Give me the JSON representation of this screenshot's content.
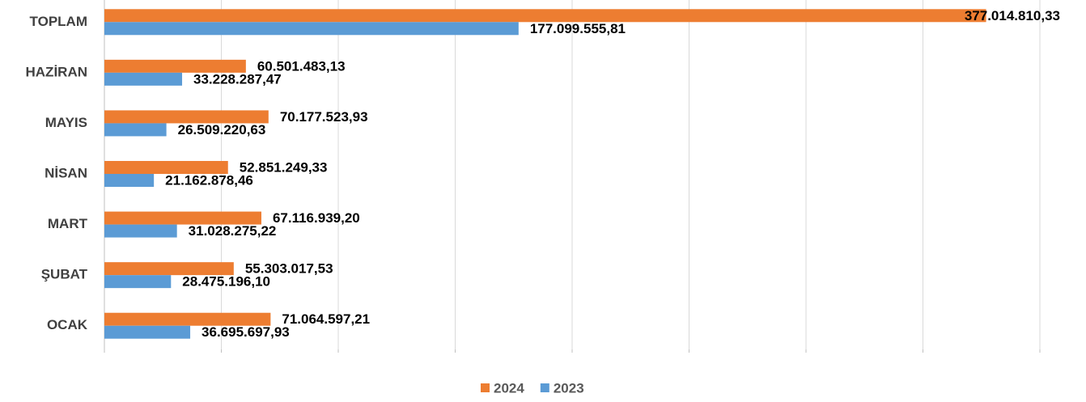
{
  "chart_data": {
    "type": "barh",
    "categories": [
      "TOPLAM",
      "HAZİRAN",
      "MAYIS",
      "NİSAN",
      "MART",
      "ŞUBAT",
      "OCAK"
    ],
    "series": [
      {
        "name": "2024",
        "color": "#ed7d31",
        "values": [
          377014810.33,
          60501483.13,
          70177523.93,
          52851249.33,
          67116939.2,
          55303017.53,
          71064597.21
        ],
        "value_labels": [
          "377.014.810,33",
          "60.501.483,13",
          "70.177.523,93",
          "52.851.249,33",
          "67.116.939,20",
          "55.303.017,53",
          "71.064.597,21"
        ]
      },
      {
        "name": "2023",
        "color": "#5b9bd5",
        "values": [
          177099555.81,
          33228287.47,
          26509220.63,
          21162878.46,
          31028275.22,
          28475196.1,
          36695697.93
        ],
        "value_labels": [
          "177.099.555,81",
          "33.228.287,47",
          "26.509.220,63",
          "21.162.878,46",
          "31.028.275,22",
          "28.475.196,10",
          "36.695.697,93"
        ]
      }
    ],
    "xlim": [
      0,
      400000000
    ],
    "xticks": [
      0,
      50000000,
      100000000,
      150000000,
      200000000,
      250000000,
      300000000,
      350000000,
      400000000
    ],
    "grid": true,
    "legend": "bottom"
  }
}
